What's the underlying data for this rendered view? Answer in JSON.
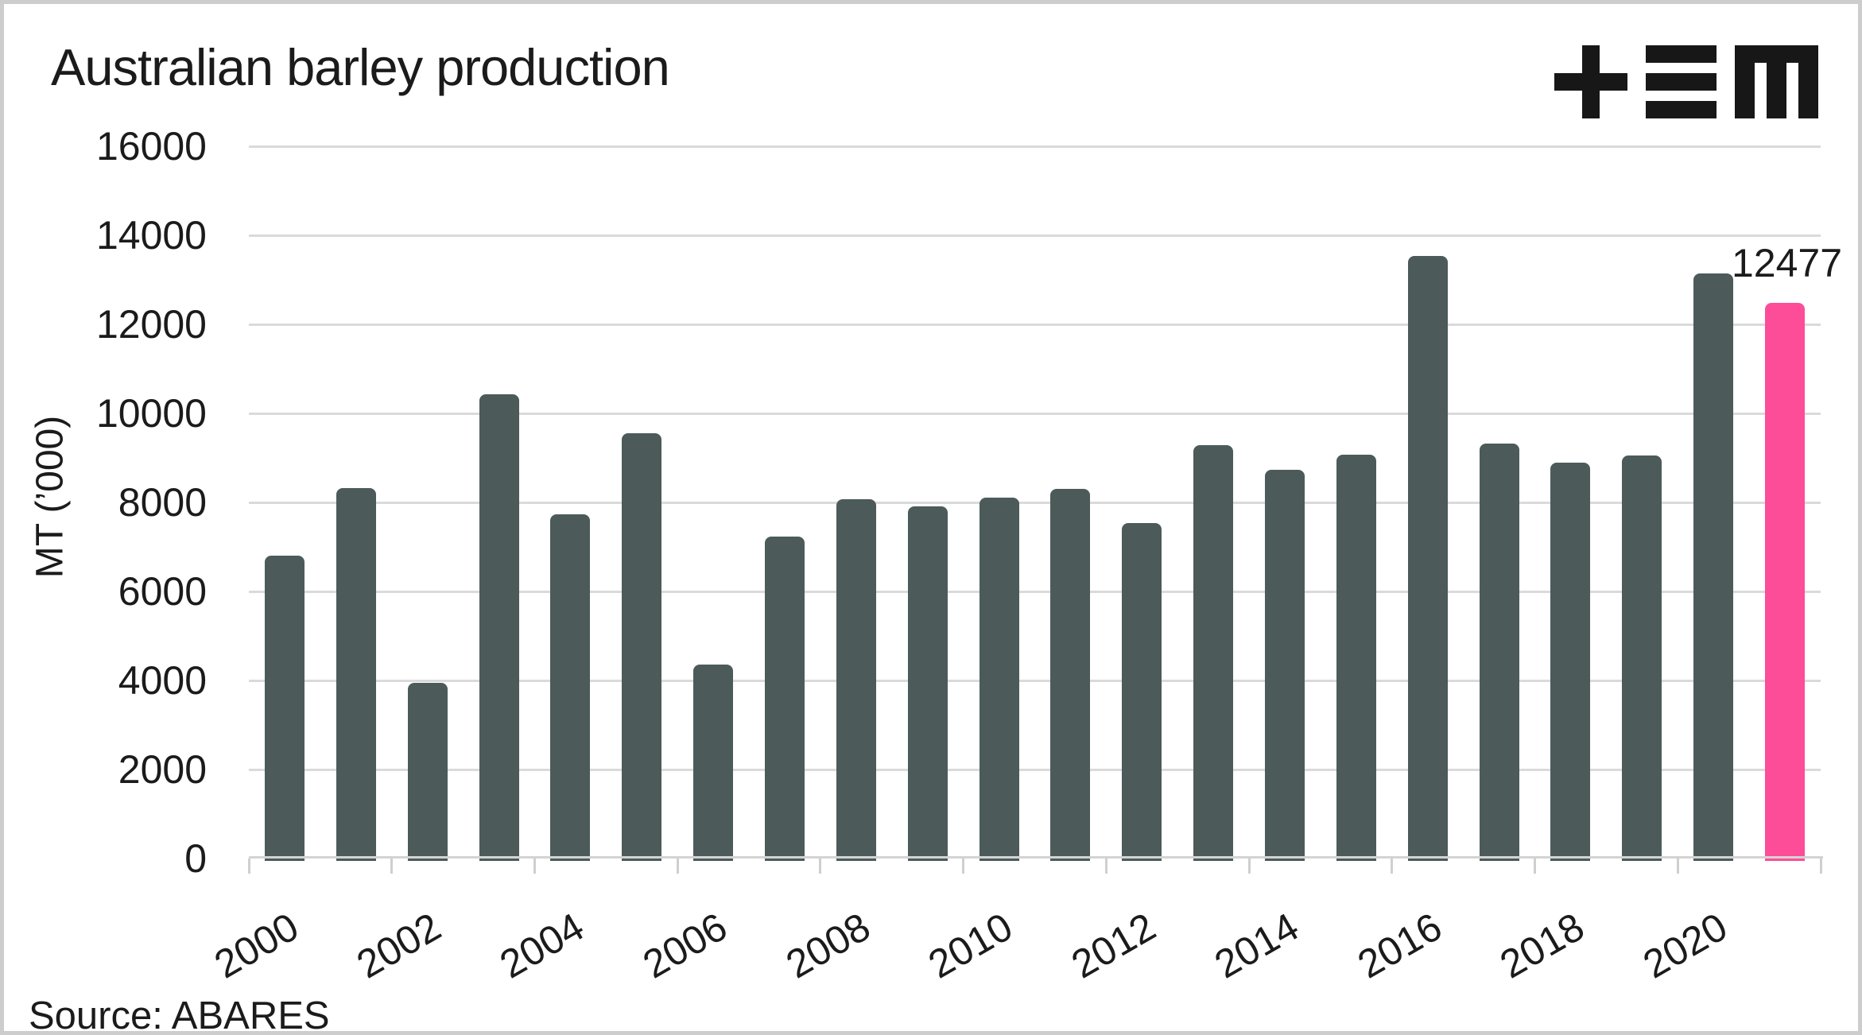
{
  "header": {
    "title": "Australian barley production"
  },
  "logo": {
    "name": "TEM brand mark",
    "parts": [
      "plus-glyph",
      "triple-bar-glyph",
      "m-glyph"
    ]
  },
  "y_axis": {
    "title": "MT (’000)",
    "tick_labels": [
      "0",
      "2000",
      "4000",
      "6000",
      "8000",
      "10000",
      "12000",
      "14000",
      "16000"
    ]
  },
  "x_axis": {
    "tick_labels": [
      "2000",
      "2002",
      "2004",
      "2006",
      "2008",
      "2010",
      "2012",
      "2014",
      "2016",
      "2018",
      "2020"
    ]
  },
  "annotation": {
    "value_label": "12477"
  },
  "footer": {
    "source": "Source: ABARES"
  },
  "colors": {
    "bar": "#4c5a5a",
    "highlight": "#fd4c98",
    "grid": "#dadada",
    "axis": "#d3d3d3",
    "tick": "#cfcfcf",
    "text": "#1b1b1b",
    "logo": "#171717",
    "frame": "#cdcdcd"
  },
  "chart_data": {
    "type": "bar",
    "title": "Australian barley production",
    "xlabel": "",
    "ylabel": "MT ('000)",
    "x": [
      2000,
      2001,
      2002,
      2003,
      2004,
      2005,
      2006,
      2007,
      2008,
      2009,
      2010,
      2011,
      2012,
      2013,
      2014,
      2015,
      2016,
      2017,
      2018,
      2019,
      2020,
      2021
    ],
    "values": [
      6800,
      8330,
      3950,
      10420,
      7740,
      9560,
      4350,
      7230,
      8080,
      7910,
      8110,
      8310,
      7530,
      9280,
      8730,
      9070,
      13540,
      9330,
      8890,
      9060,
      13150,
      12477
    ],
    "highlight_x": 2021,
    "highlight_value": 12477,
    "data_label": {
      "x": 2021,
      "text": "12477"
    },
    "ylim": [
      0,
      16000
    ],
    "ytick_step": 2000,
    "xticks_labeled_every": 2,
    "grid": "horizontal-only",
    "legend": "none",
    "source": "ABARES"
  }
}
